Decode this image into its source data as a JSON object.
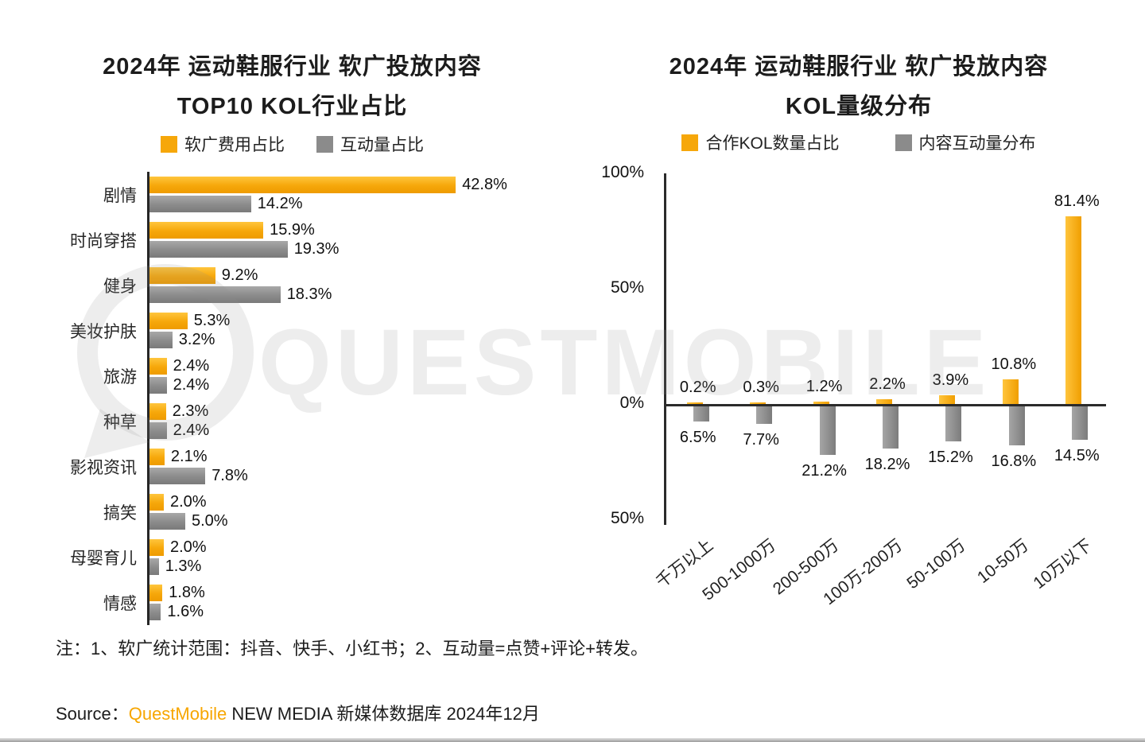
{
  "watermark": {
    "text": "QUESTMOBILE"
  },
  "left_chart": {
    "title_line1": "2024年 运动鞋服行业 软广投放内容",
    "title_line2": "TOP10 KOL行业占比",
    "legend": [
      {
        "label": "软广费用占比",
        "color": "#F6A70A"
      },
      {
        "label": "互动量占比",
        "color": "#8B8B8B"
      }
    ]
  },
  "right_chart": {
    "title_line1": "2024年 运动鞋服行业 软广投放内容",
    "title_line2": "KOL量级分布",
    "legend": [
      {
        "label": "合作KOL数量占比",
        "color": "#F6A70A"
      },
      {
        "label": "内容互动量分布",
        "color": "#8B8B8B"
      }
    ]
  },
  "chart_data": [
    {
      "type": "bar",
      "orientation": "horizontal",
      "title": "2024年 运动鞋服行业 软广投放内容 TOP10 KOL行业占比",
      "categories": [
        "剧情",
        "时尚穿搭",
        "健身",
        "美妆护肤",
        "旅游",
        "种草",
        "影视资讯",
        "搞笑",
        "母婴育儿",
        "情感"
      ],
      "series": [
        {
          "name": "软广费用占比",
          "color": "#F6A70A",
          "values": [
            42.8,
            15.9,
            9.2,
            5.3,
            2.4,
            2.3,
            2.1,
            2.0,
            2.0,
            1.8
          ]
        },
        {
          "name": "互动量占比",
          "color": "#8B8B8B",
          "values": [
            14.2,
            19.3,
            18.3,
            3.2,
            2.4,
            2.4,
            7.8,
            5.0,
            1.3,
            1.6
          ]
        }
      ],
      "unit": "%",
      "xlim": [
        0,
        45
      ],
      "grid": false,
      "legend_position": "top"
    },
    {
      "type": "bar",
      "orientation": "vertical-diverging",
      "title": "2024年 运动鞋服行业 软广投放内容 KOL量级分布",
      "categories": [
        "千万以上",
        "500-1000万",
        "200-500万",
        "100万-200万",
        "50-100万",
        "10-50万",
        "10万以下"
      ],
      "series": [
        {
          "name": "合作KOL数量占比",
          "color": "#F6A70A",
          "direction": "up",
          "values": [
            0.2,
            0.3,
            1.2,
            2.2,
            3.9,
            10.8,
            81.4
          ]
        },
        {
          "name": "内容互动量分布",
          "color": "#8B8B8B",
          "direction": "down",
          "values": [
            6.5,
            7.7,
            21.2,
            18.2,
            15.2,
            16.8,
            14.5
          ]
        }
      ],
      "y_ticks": [
        100,
        50,
        0,
        -50
      ],
      "unit": "%",
      "ylim": [
        -50,
        100
      ],
      "grid": false,
      "legend_position": "top"
    }
  ],
  "note": "注：1、软广统计范围：抖音、快手、小红书；2、互动量=点赞+评论+转发。",
  "source": {
    "prefix": "Source：",
    "brand": "QuestMobile",
    "rest": " NEW MEDIA 新媒体数据库 2024年12月"
  }
}
